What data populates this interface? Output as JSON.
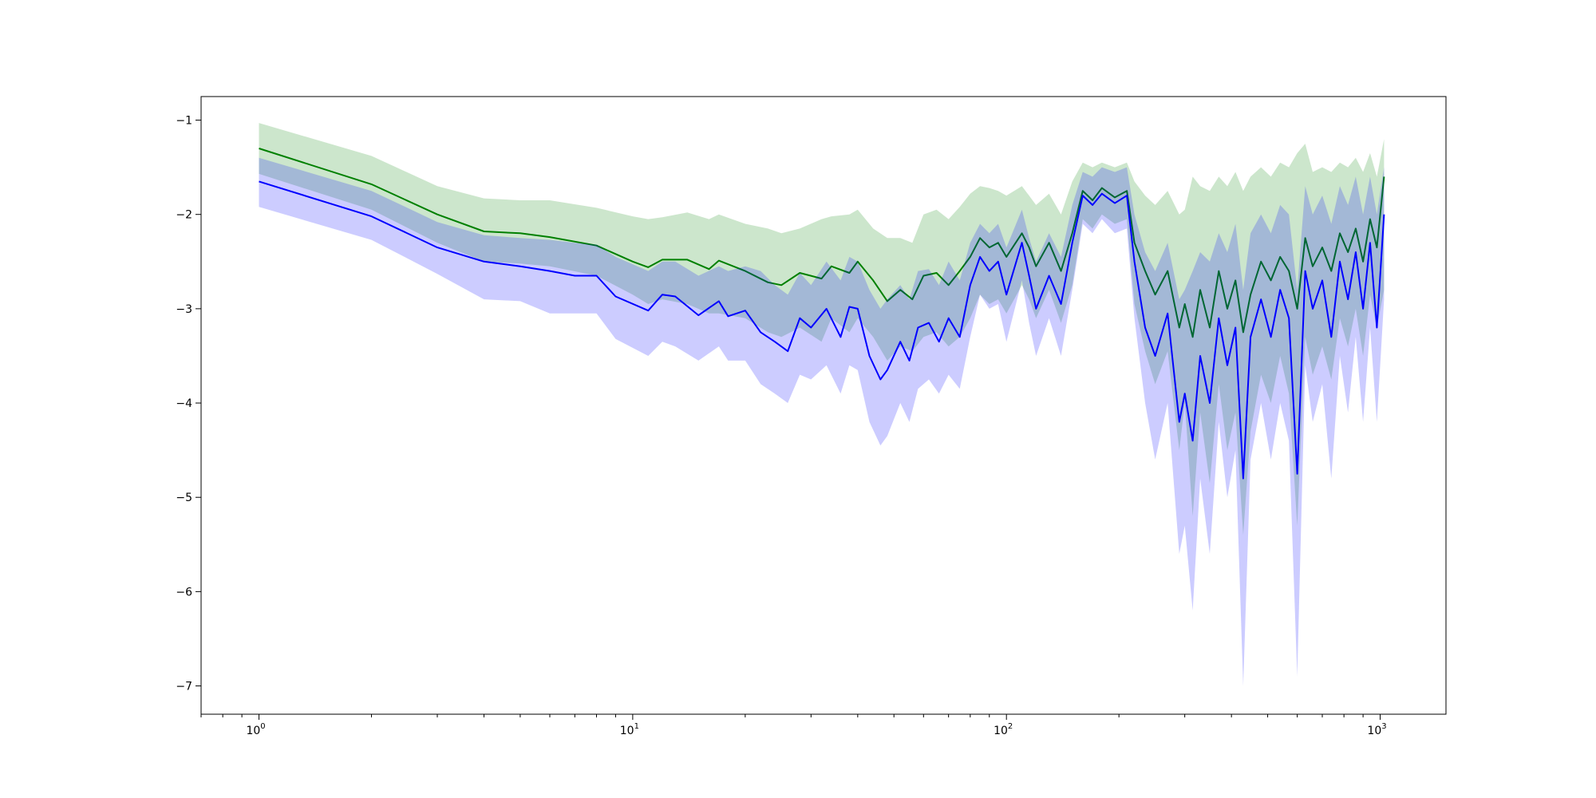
{
  "chart_data": {
    "type": "line",
    "title": "",
    "xlabel": "",
    "ylabel": "",
    "xscale": "log",
    "xlim": [
      0.7,
      1500
    ],
    "ylim": [
      -7.3,
      -0.75
    ],
    "grid": false,
    "x_ticks": [
      {
        "value": 1,
        "base": "10",
        "exp": "0"
      },
      {
        "value": 10,
        "base": "10",
        "exp": "1"
      },
      {
        "value": 100,
        "base": "10",
        "exp": "2"
      },
      {
        "value": 1000,
        "base": "10",
        "exp": "3"
      }
    ],
    "y_ticks": [
      {
        "value": -1,
        "label": "−1"
      },
      {
        "value": -2,
        "label": "−2"
      },
      {
        "value": -3,
        "label": "−3"
      },
      {
        "value": -4,
        "label": "−4"
      },
      {
        "value": -5,
        "label": "−5"
      },
      {
        "value": -6,
        "label": "−6"
      },
      {
        "value": -7,
        "label": "−7"
      }
    ],
    "series": [
      {
        "color": "#008000",
        "band_color": "#008000",
        "band_opacity": 0.2,
        "points": [
          [
            1,
            -1.3,
            -1.03,
            -1.57
          ],
          [
            2,
            -1.68,
            -1.38,
            -1.95
          ],
          [
            3,
            -2.0,
            -1.7,
            -2.3
          ],
          [
            4,
            -2.18,
            -1.83,
            -2.5
          ],
          [
            5,
            -2.2,
            -1.85,
            -2.52
          ],
          [
            6,
            -2.24,
            -1.85,
            -2.55
          ],
          [
            8,
            -2.33,
            -1.93,
            -2.65
          ],
          [
            10,
            -2.5,
            -2.02,
            -2.85
          ],
          [
            11,
            -2.56,
            -2.05,
            -2.95
          ],
          [
            12,
            -2.48,
            -2.03,
            -2.9
          ],
          [
            14,
            -2.48,
            -1.98,
            -2.95
          ],
          [
            16,
            -2.58,
            -2.05,
            -3.05
          ],
          [
            17,
            -2.49,
            -2.0,
            -3.05
          ],
          [
            20,
            -2.6,
            -2.1,
            -3.1
          ],
          [
            23,
            -2.72,
            -2.15,
            -3.25
          ],
          [
            25,
            -2.75,
            -2.2,
            -3.3
          ],
          [
            28,
            -2.62,
            -2.15,
            -3.2
          ],
          [
            32,
            -2.68,
            -2.05,
            -3.35
          ],
          [
            34,
            -2.55,
            -2.02,
            -3.1
          ],
          [
            38,
            -2.62,
            -2.0,
            -3.25
          ],
          [
            40,
            -2.5,
            -1.95,
            -3.1
          ],
          [
            44,
            -2.7,
            -2.15,
            -3.3
          ],
          [
            48,
            -2.92,
            -2.25,
            -3.55
          ],
          [
            52,
            -2.8,
            -2.25,
            -3.4
          ],
          [
            56,
            -2.9,
            -2.3,
            -3.45
          ],
          [
            60,
            -2.65,
            -2.0,
            -3.3
          ],
          [
            65,
            -2.62,
            -1.95,
            -3.25
          ],
          [
            70,
            -2.75,
            -2.05,
            -3.4
          ],
          [
            75,
            -2.6,
            -1.92,
            -3.3
          ],
          [
            80,
            -2.45,
            -1.78,
            -3.1
          ],
          [
            85,
            -2.25,
            -1.7,
            -2.85
          ],
          [
            90,
            -2.35,
            -1.72,
            -2.95
          ],
          [
            95,
            -2.3,
            -1.75,
            -2.9
          ],
          [
            100,
            -2.45,
            -1.8,
            -3.05
          ],
          [
            110,
            -2.2,
            -1.7,
            -2.75
          ],
          [
            115,
            -2.35,
            -1.8,
            -2.9
          ],
          [
            120,
            -2.55,
            -1.9,
            -3.1
          ],
          [
            130,
            -2.3,
            -1.78,
            -2.8
          ],
          [
            140,
            -2.6,
            -2.0,
            -3.15
          ],
          [
            150,
            -2.2,
            -1.65,
            -2.75
          ],
          [
            160,
            -1.75,
            -1.45,
            -2.05
          ],
          [
            170,
            -1.85,
            -1.5,
            -2.15
          ],
          [
            180,
            -1.72,
            -1.45,
            -2.0
          ],
          [
            195,
            -1.82,
            -1.5,
            -2.1
          ],
          [
            210,
            -1.75,
            -1.45,
            -2.05
          ],
          [
            220,
            -2.3,
            -1.65,
            -2.95
          ],
          [
            235,
            -2.6,
            -1.8,
            -3.45
          ],
          [
            250,
            -2.85,
            -1.9,
            -3.8
          ],
          [
            270,
            -2.6,
            -1.75,
            -3.45
          ],
          [
            290,
            -3.2,
            -2.0,
            -4.5
          ],
          [
            300,
            -2.95,
            -1.95,
            -4.0
          ],
          [
            315,
            -3.3,
            -1.6,
            -5.2
          ],
          [
            330,
            -2.8,
            -1.7,
            -4.1
          ],
          [
            350,
            -3.2,
            -1.75,
            -4.85
          ],
          [
            370,
            -2.6,
            -1.6,
            -3.8
          ],
          [
            390,
            -3.0,
            -1.7,
            -4.5
          ],
          [
            410,
            -2.7,
            -1.55,
            -4.1
          ],
          [
            430,
            -3.25,
            -1.75,
            -5.4
          ],
          [
            450,
            -2.85,
            -1.6,
            -4.3
          ],
          [
            480,
            -2.5,
            -1.5,
            -3.7
          ],
          [
            510,
            -2.7,
            -1.6,
            -4.0
          ],
          [
            540,
            -2.45,
            -1.45,
            -3.5
          ],
          [
            570,
            -2.6,
            -1.5,
            -3.9
          ],
          [
            600,
            -3.0,
            -1.35,
            -5.3
          ],
          [
            630,
            -2.25,
            -1.25,
            -3.3
          ],
          [
            660,
            -2.55,
            -1.55,
            -3.7
          ],
          [
            700,
            -2.35,
            -1.5,
            -3.4
          ],
          [
            740,
            -2.6,
            -1.55,
            -3.75
          ],
          [
            780,
            -2.2,
            -1.45,
            -3.1
          ],
          [
            820,
            -2.4,
            -1.5,
            -3.4
          ],
          [
            860,
            -2.15,
            -1.4,
            -3.0
          ],
          [
            900,
            -2.5,
            -1.55,
            -3.5
          ],
          [
            940,
            -2.05,
            -1.35,
            -2.85
          ],
          [
            980,
            -2.35,
            -1.6,
            -3.2
          ],
          [
            1024,
            -1.6,
            -1.2,
            -2.8
          ]
        ]
      },
      {
        "color": "#0000ff",
        "band_color": "#0000ff",
        "band_opacity": 0.2,
        "points": [
          [
            1,
            -1.65,
            -1.4,
            -1.92
          ],
          [
            2,
            -2.02,
            -1.75,
            -2.27
          ],
          [
            3,
            -2.35,
            -2.08,
            -2.63
          ],
          [
            4,
            -2.5,
            -2.22,
            -2.9
          ],
          [
            5,
            -2.55,
            -2.25,
            -2.92
          ],
          [
            6,
            -2.6,
            -2.27,
            -3.05
          ],
          [
            7,
            -2.65,
            -2.3,
            -3.05
          ],
          [
            8,
            -2.65,
            -2.32,
            -3.05
          ],
          [
            9,
            -2.87,
            -2.45,
            -3.32
          ],
          [
            11,
            -3.02,
            -2.6,
            -3.5
          ],
          [
            12,
            -2.85,
            -2.5,
            -3.35
          ],
          [
            13,
            -2.87,
            -2.5,
            -3.4
          ],
          [
            15,
            -3.07,
            -2.65,
            -3.55
          ],
          [
            17,
            -2.92,
            -2.55,
            -3.4
          ],
          [
            18,
            -3.08,
            -2.6,
            -3.55
          ],
          [
            20,
            -3.02,
            -2.55,
            -3.55
          ],
          [
            22,
            -3.25,
            -2.6,
            -3.8
          ],
          [
            24,
            -3.35,
            -2.75,
            -3.9
          ],
          [
            26,
            -3.45,
            -2.85,
            -4.0
          ],
          [
            28,
            -3.1,
            -2.62,
            -3.7
          ],
          [
            30,
            -3.2,
            -2.75,
            -3.75
          ],
          [
            33,
            -3.0,
            -2.5,
            -3.6
          ],
          [
            36,
            -3.3,
            -2.7,
            -3.9
          ],
          [
            38,
            -2.98,
            -2.45,
            -3.6
          ],
          [
            40,
            -3.0,
            -2.5,
            -3.65
          ],
          [
            43,
            -3.5,
            -2.8,
            -4.2
          ],
          [
            46,
            -3.75,
            -3.0,
            -4.45
          ],
          [
            48,
            -3.65,
            -2.9,
            -4.35
          ],
          [
            52,
            -3.35,
            -2.75,
            -4.0
          ],
          [
            55,
            -3.55,
            -2.9,
            -4.2
          ],
          [
            58,
            -3.2,
            -2.6,
            -3.85
          ],
          [
            62,
            -3.15,
            -2.58,
            -3.75
          ],
          [
            66,
            -3.35,
            -2.75,
            -3.9
          ],
          [
            70,
            -3.1,
            -2.5,
            -3.7
          ],
          [
            75,
            -3.3,
            -2.7,
            -3.85
          ],
          [
            80,
            -2.75,
            -2.3,
            -3.3
          ],
          [
            85,
            -2.45,
            -2.1,
            -2.85
          ],
          [
            90,
            -2.6,
            -2.2,
            -3.0
          ],
          [
            95,
            -2.5,
            -2.1,
            -2.95
          ],
          [
            100,
            -2.85,
            -2.35,
            -3.35
          ],
          [
            110,
            -2.3,
            -1.95,
            -2.7
          ],
          [
            115,
            -2.65,
            -2.25,
            -3.15
          ],
          [
            120,
            -3.0,
            -2.5,
            -3.5
          ],
          [
            130,
            -2.65,
            -2.2,
            -3.1
          ],
          [
            140,
            -2.95,
            -2.45,
            -3.5
          ],
          [
            150,
            -2.3,
            -1.9,
            -2.8
          ],
          [
            160,
            -1.8,
            -1.55,
            -2.1
          ],
          [
            170,
            -1.9,
            -1.6,
            -2.2
          ],
          [
            180,
            -1.78,
            -1.5,
            -2.05
          ],
          [
            195,
            -1.88,
            -1.55,
            -2.2
          ],
          [
            210,
            -1.8,
            -1.5,
            -2.15
          ],
          [
            220,
            -2.5,
            -2.0,
            -3.1
          ],
          [
            235,
            -3.2,
            -2.4,
            -4.0
          ],
          [
            250,
            -3.5,
            -2.6,
            -4.6
          ],
          [
            270,
            -3.05,
            -2.3,
            -4.0
          ],
          [
            290,
            -4.2,
            -2.9,
            -5.6
          ],
          [
            300,
            -3.9,
            -2.8,
            -5.3
          ],
          [
            315,
            -4.4,
            -2.6,
            -6.2
          ],
          [
            330,
            -3.5,
            -2.4,
            -4.8
          ],
          [
            350,
            -4.0,
            -2.5,
            -5.6
          ],
          [
            370,
            -3.1,
            -2.2,
            -4.2
          ],
          [
            390,
            -3.6,
            -2.4,
            -5.0
          ],
          [
            410,
            -3.2,
            -2.1,
            -4.5
          ],
          [
            430,
            -4.8,
            -2.8,
            -7.0
          ],
          [
            450,
            -3.3,
            -2.2,
            -4.6
          ],
          [
            480,
            -2.9,
            -2.0,
            -4.0
          ],
          [
            510,
            -3.3,
            -2.2,
            -4.6
          ],
          [
            540,
            -2.8,
            -1.9,
            -4.0
          ],
          [
            570,
            -3.1,
            -2.0,
            -4.4
          ],
          [
            600,
            -4.75,
            -2.8,
            -6.9
          ],
          [
            630,
            -2.6,
            -1.7,
            -3.6
          ],
          [
            660,
            -3.0,
            -2.0,
            -4.2
          ],
          [
            700,
            -2.7,
            -1.8,
            -3.8
          ],
          [
            740,
            -3.3,
            -2.1,
            -4.8
          ],
          [
            780,
            -2.5,
            -1.7,
            -3.5
          ],
          [
            820,
            -2.9,
            -1.9,
            -4.1
          ],
          [
            860,
            -2.4,
            -1.6,
            -3.3
          ],
          [
            900,
            -3.0,
            -2.0,
            -4.2
          ],
          [
            940,
            -2.3,
            -1.6,
            -3.2
          ],
          [
            980,
            -3.2,
            -2.0,
            -4.2
          ],
          [
            1024,
            -2.0,
            -1.5,
            -2.9
          ]
        ]
      }
    ]
  }
}
